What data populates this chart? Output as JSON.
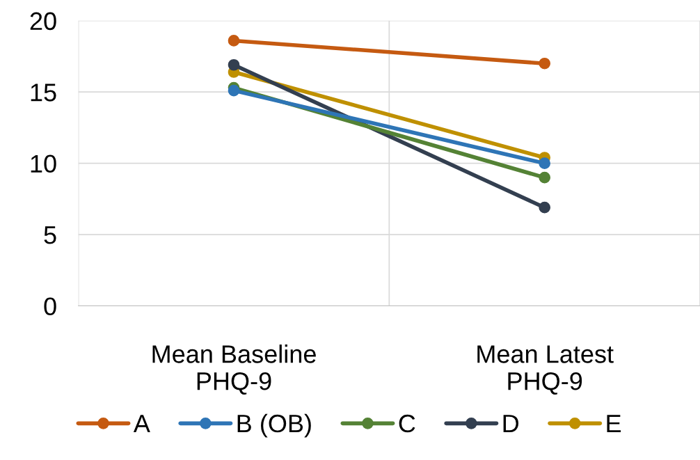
{
  "chart_data": {
    "type": "line",
    "categories": [
      "Mean Baseline\nPHQ-9",
      "Mean Latest\nPHQ-9"
    ],
    "series": [
      {
        "name": "A",
        "color": "#c55a11",
        "values": [
          18.6,
          17.0
        ]
      },
      {
        "name": "B (OB)",
        "color": "#2e75b6",
        "values": [
          15.1,
          10.0
        ]
      },
      {
        "name": "C",
        "color": "#548235",
        "values": [
          15.3,
          9.0
        ]
      },
      {
        "name": "D",
        "color": "#333f50",
        "values": [
          16.9,
          6.9
        ]
      },
      {
        "name": "E",
        "color": "#bf9000",
        "values": [
          16.4,
          10.4
        ]
      }
    ],
    "ylim": [
      0,
      20
    ],
    "yticks": [
      0,
      5,
      10,
      15,
      20
    ],
    "grid": true,
    "legend": "bottom",
    "marker": "circle",
    "line_style": "solid"
  }
}
